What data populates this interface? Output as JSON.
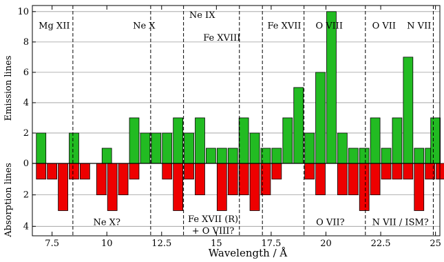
{
  "chart_data": {
    "type": "bar",
    "xlabel": "Wavelength / Å",
    "ylabel_top": "Emission lines",
    "ylabel_bottom": "Absorption lines",
    "xlim": [
      6.6,
      25.2
    ],
    "ylim_emission": [
      0,
      10.4
    ],
    "ylim_absorption": [
      0,
      4.6
    ],
    "x_ticks": [
      7.5,
      10,
      12.5,
      15,
      17.5,
      20,
      22.5,
      25
    ],
    "x_tick_labels": [
      "7.5",
      "10",
      "12.5",
      "15",
      "17.5",
      "20",
      "22.5",
      "25"
    ],
    "y_ticks_emission": [
      0,
      2,
      4,
      6,
      8,
      10
    ],
    "y_ticks_absorption": [
      2,
      4
    ],
    "bin_width": 0.5,
    "emission": {
      "color": "#22bb22",
      "bins": [
        {
          "x": 7.0,
          "value": 2
        },
        {
          "x": 8.5,
          "value": 2
        },
        {
          "x": 10.0,
          "value": 1
        },
        {
          "x": 11.25,
          "value": 3
        },
        {
          "x": 11.75,
          "value": 2
        },
        {
          "x": 12.25,
          "value": 2
        },
        {
          "x": 12.75,
          "value": 2
        },
        {
          "x": 13.25,
          "value": 3
        },
        {
          "x": 13.75,
          "value": 2
        },
        {
          "x": 14.25,
          "value": 3
        },
        {
          "x": 14.75,
          "value": 1
        },
        {
          "x": 15.25,
          "value": 1
        },
        {
          "x": 15.75,
          "value": 1
        },
        {
          "x": 16.25,
          "value": 3
        },
        {
          "x": 16.75,
          "value": 2
        },
        {
          "x": 17.25,
          "value": 1
        },
        {
          "x": 17.75,
          "value": 1
        },
        {
          "x": 18.25,
          "value": 3
        },
        {
          "x": 18.75,
          "value": 5
        },
        {
          "x": 19.25,
          "value": 2
        },
        {
          "x": 19.75,
          "value": 6
        },
        {
          "x": 20.25,
          "value": 10
        },
        {
          "x": 20.75,
          "value": 2
        },
        {
          "x": 21.25,
          "value": 1
        },
        {
          "x": 21.75,
          "value": 1
        },
        {
          "x": 22.25,
          "value": 3
        },
        {
          "x": 22.75,
          "value": 1
        },
        {
          "x": 23.25,
          "value": 3
        },
        {
          "x": 23.75,
          "value": 7
        },
        {
          "x": 24.25,
          "value": 1
        },
        {
          "x": 24.75,
          "value": 1
        },
        {
          "x": 25.0,
          "value": 3
        }
      ]
    },
    "absorption": {
      "color": "#ee0000",
      "bins": [
        {
          "x": 7.0,
          "value": 1
        },
        {
          "x": 7.5,
          "value": 1
        },
        {
          "x": 8.0,
          "value": 3
        },
        {
          "x": 8.5,
          "value": 1
        },
        {
          "x": 9.0,
          "value": 1
        },
        {
          "x": 9.75,
          "value": 2
        },
        {
          "x": 10.25,
          "value": 3
        },
        {
          "x": 10.75,
          "value": 2
        },
        {
          "x": 11.25,
          "value": 1
        },
        {
          "x": 12.75,
          "value": 1
        },
        {
          "x": 13.25,
          "value": 3
        },
        {
          "x": 13.75,
          "value": 1
        },
        {
          "x": 14.25,
          "value": 2
        },
        {
          "x": 15.25,
          "value": 3
        },
        {
          "x": 15.75,
          "value": 2
        },
        {
          "x": 16.25,
          "value": 2
        },
        {
          "x": 16.75,
          "value": 3
        },
        {
          "x": 17.25,
          "value": 2
        },
        {
          "x": 17.75,
          "value": 1
        },
        {
          "x": 19.25,
          "value": 1
        },
        {
          "x": 19.75,
          "value": 2
        },
        {
          "x": 20.75,
          "value": 2
        },
        {
          "x": 21.25,
          "value": 2
        },
        {
          "x": 21.75,
          "value": 3
        },
        {
          "x": 22.25,
          "value": 2
        },
        {
          "x": 22.75,
          "value": 1
        },
        {
          "x": 23.25,
          "value": 1
        },
        {
          "x": 23.75,
          "value": 1
        },
        {
          "x": 24.25,
          "value": 3
        },
        {
          "x": 24.75,
          "value": 1
        },
        {
          "x": 25.25,
          "value": 1
        }
      ]
    },
    "dividers_x": [
      8.45,
      12.0,
      13.5,
      16.05,
      17.1,
      19.0,
      21.8,
      24.9
    ],
    "emission_region_labels": [
      {
        "text": "Mg XII",
        "x": 7.6,
        "y": 9.1
      },
      {
        "text": "Ne X",
        "x": 11.7,
        "y": 9.1
      },
      {
        "text": "Ne IX",
        "x": 14.35,
        "y": 9.8
      },
      {
        "text": "Fe XVIII",
        "x": 15.25,
        "y": 8.3
      },
      {
        "text": "Fe XVII",
        "x": 18.1,
        "y": 9.1
      },
      {
        "text": "O VIII",
        "x": 20.15,
        "y": 9.1
      },
      {
        "text": "O VII",
        "x": 22.65,
        "y": 9.1
      },
      {
        "text": "N VII",
        "x": 24.25,
        "y": 9.1
      }
    ],
    "absorption_region_labels": [
      {
        "text": "Ne X?",
        "x": 10.0,
        "y": 3.7
      },
      {
        "text": "Fe XVII (R)",
        "x": 14.85,
        "y": 3.5
      },
      {
        "text": "+ O VIII?",
        "x": 14.85,
        "y": 4.25
      },
      {
        "text": "O VII?",
        "x": 20.2,
        "y": 3.7
      },
      {
        "text": "N VII / ISM?",
        "x": 23.4,
        "y": 3.7
      }
    ]
  }
}
